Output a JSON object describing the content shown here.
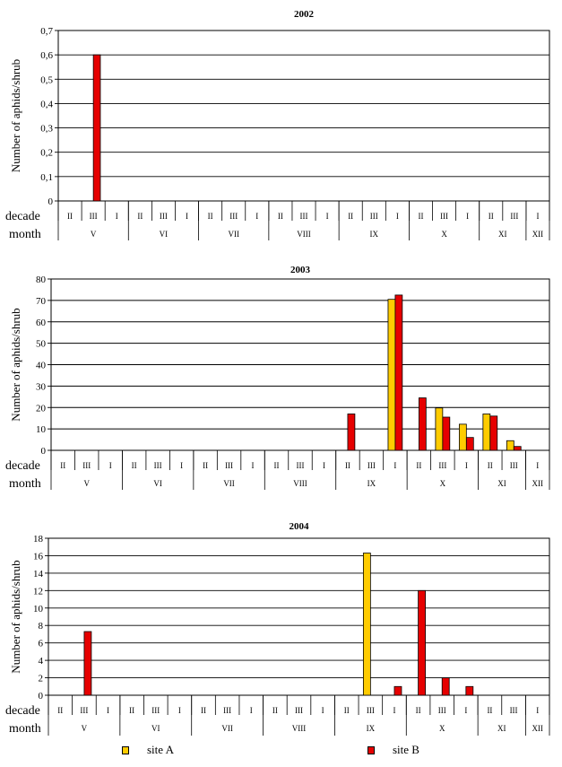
{
  "chart_data": [
    {
      "type": "bar",
      "title": "2002",
      "ylabel": "Number of aphids/shrub",
      "ylim": [
        0,
        0.7
      ],
      "yticks": [
        "0",
        "0,1",
        "0,2",
        "0,3",
        "0,4",
        "0,5",
        "0,6",
        "0,7"
      ],
      "row_labels": {
        "decade": "decade",
        "month": "month"
      },
      "decades": [
        "II",
        "III",
        "I",
        "II",
        "III",
        "I",
        "II",
        "III",
        "I",
        "II",
        "III",
        "I",
        "II",
        "III",
        "I",
        "II",
        "III",
        "I",
        "II",
        "III",
        "I"
      ],
      "months": [
        {
          "label": "V",
          "span": 3
        },
        {
          "label": "VI",
          "span": 3
        },
        {
          "label": "VII",
          "span": 3
        },
        {
          "label": "VIII",
          "span": 3
        },
        {
          "label": "IX",
          "span": 3
        },
        {
          "label": "X",
          "span": 3
        },
        {
          "label": "XI",
          "span": 2
        },
        {
          "label": "XII",
          "span": 1
        }
      ],
      "series": [
        {
          "name": "site A",
          "values": [
            0,
            0,
            0,
            0,
            0,
            0,
            0,
            0,
            0,
            0,
            0,
            0,
            0,
            0,
            0,
            0,
            0,
            0,
            0,
            0,
            0
          ]
        },
        {
          "name": "site B",
          "values": [
            0,
            0.6,
            0,
            0,
            0,
            0,
            0,
            0,
            0,
            0,
            0,
            0,
            0,
            0,
            0,
            0,
            0,
            0,
            0,
            0,
            0
          ]
        }
      ]
    },
    {
      "type": "bar",
      "title": "2003",
      "ylabel": "Number of aphids/shrub",
      "ylim": [
        0,
        80
      ],
      "yticks": [
        "0",
        "10",
        "20",
        "30",
        "40",
        "50",
        "60",
        "70",
        "80"
      ],
      "row_labels": {
        "decade": "decade",
        "month": "month"
      },
      "decades": [
        "II",
        "III",
        "I",
        "II",
        "III",
        "I",
        "II",
        "III",
        "I",
        "II",
        "III",
        "I",
        "II",
        "III",
        "I",
        "II",
        "III",
        "I",
        "II",
        "III",
        "I"
      ],
      "months": [
        {
          "label": "V",
          "span": 3
        },
        {
          "label": "VI",
          "span": 3
        },
        {
          "label": "VII",
          "span": 3
        },
        {
          "label": "VIII",
          "span": 3
        },
        {
          "label": "IX",
          "span": 3
        },
        {
          "label": "X",
          "span": 3
        },
        {
          "label": "XI",
          "span": 2
        },
        {
          "label": "XII",
          "span": 1
        }
      ],
      "series": [
        {
          "name": "site A",
          "values": [
            0,
            0,
            0,
            0,
            0,
            0,
            0,
            0,
            0,
            0,
            0,
            0,
            0,
            0,
            70.5,
            0,
            19.8,
            12.2,
            17,
            4.5,
            0
          ]
        },
        {
          "name": "site B",
          "values": [
            0,
            0,
            0,
            0,
            0,
            0,
            0,
            0,
            0,
            0,
            0,
            0,
            17,
            0,
            72.5,
            24.5,
            15.5,
            6,
            16,
            1.8,
            0
          ]
        }
      ]
    },
    {
      "type": "bar",
      "title": "2004",
      "ylabel": "Number of aphids/shrub",
      "ylim": [
        0,
        18
      ],
      "yticks": [
        "0",
        "2",
        "4",
        "6",
        "8",
        "10",
        "12",
        "14",
        "16",
        "18"
      ],
      "row_labels": {
        "decade": "decade",
        "month": "month"
      },
      "decades": [
        "II",
        "III",
        "I",
        "II",
        "III",
        "I",
        "II",
        "III",
        "I",
        "II",
        "III",
        "I",
        "II",
        "III",
        "I",
        "II",
        "III",
        "I",
        "II",
        "III",
        "I"
      ],
      "months": [
        {
          "label": "V",
          "span": 3
        },
        {
          "label": "VI",
          "span": 3
        },
        {
          "label": "VII",
          "span": 3
        },
        {
          "label": "VIII",
          "span": 3
        },
        {
          "label": "IX",
          "span": 3
        },
        {
          "label": "X",
          "span": 3
        },
        {
          "label": "XI",
          "span": 2
        },
        {
          "label": "XII",
          "span": 1
        }
      ],
      "series": [
        {
          "name": "site A",
          "values": [
            0,
            0,
            0,
            0,
            0,
            0,
            0,
            0,
            0,
            0,
            0,
            0,
            0,
            16.3,
            0,
            0,
            0,
            0,
            0,
            0,
            0
          ]
        },
        {
          "name": "site B",
          "values": [
            0,
            7.3,
            0,
            0,
            0,
            0,
            0,
            0,
            0,
            0,
            0,
            0,
            0,
            0,
            1,
            12,
            2,
            1,
            0,
            0,
            0
          ]
        }
      ]
    }
  ],
  "legend": {
    "site_a": "site A",
    "site_b": "site B"
  },
  "colors": {
    "site_a": "#ffcc00",
    "site_b": "#e60000",
    "grid": "#000000"
  }
}
